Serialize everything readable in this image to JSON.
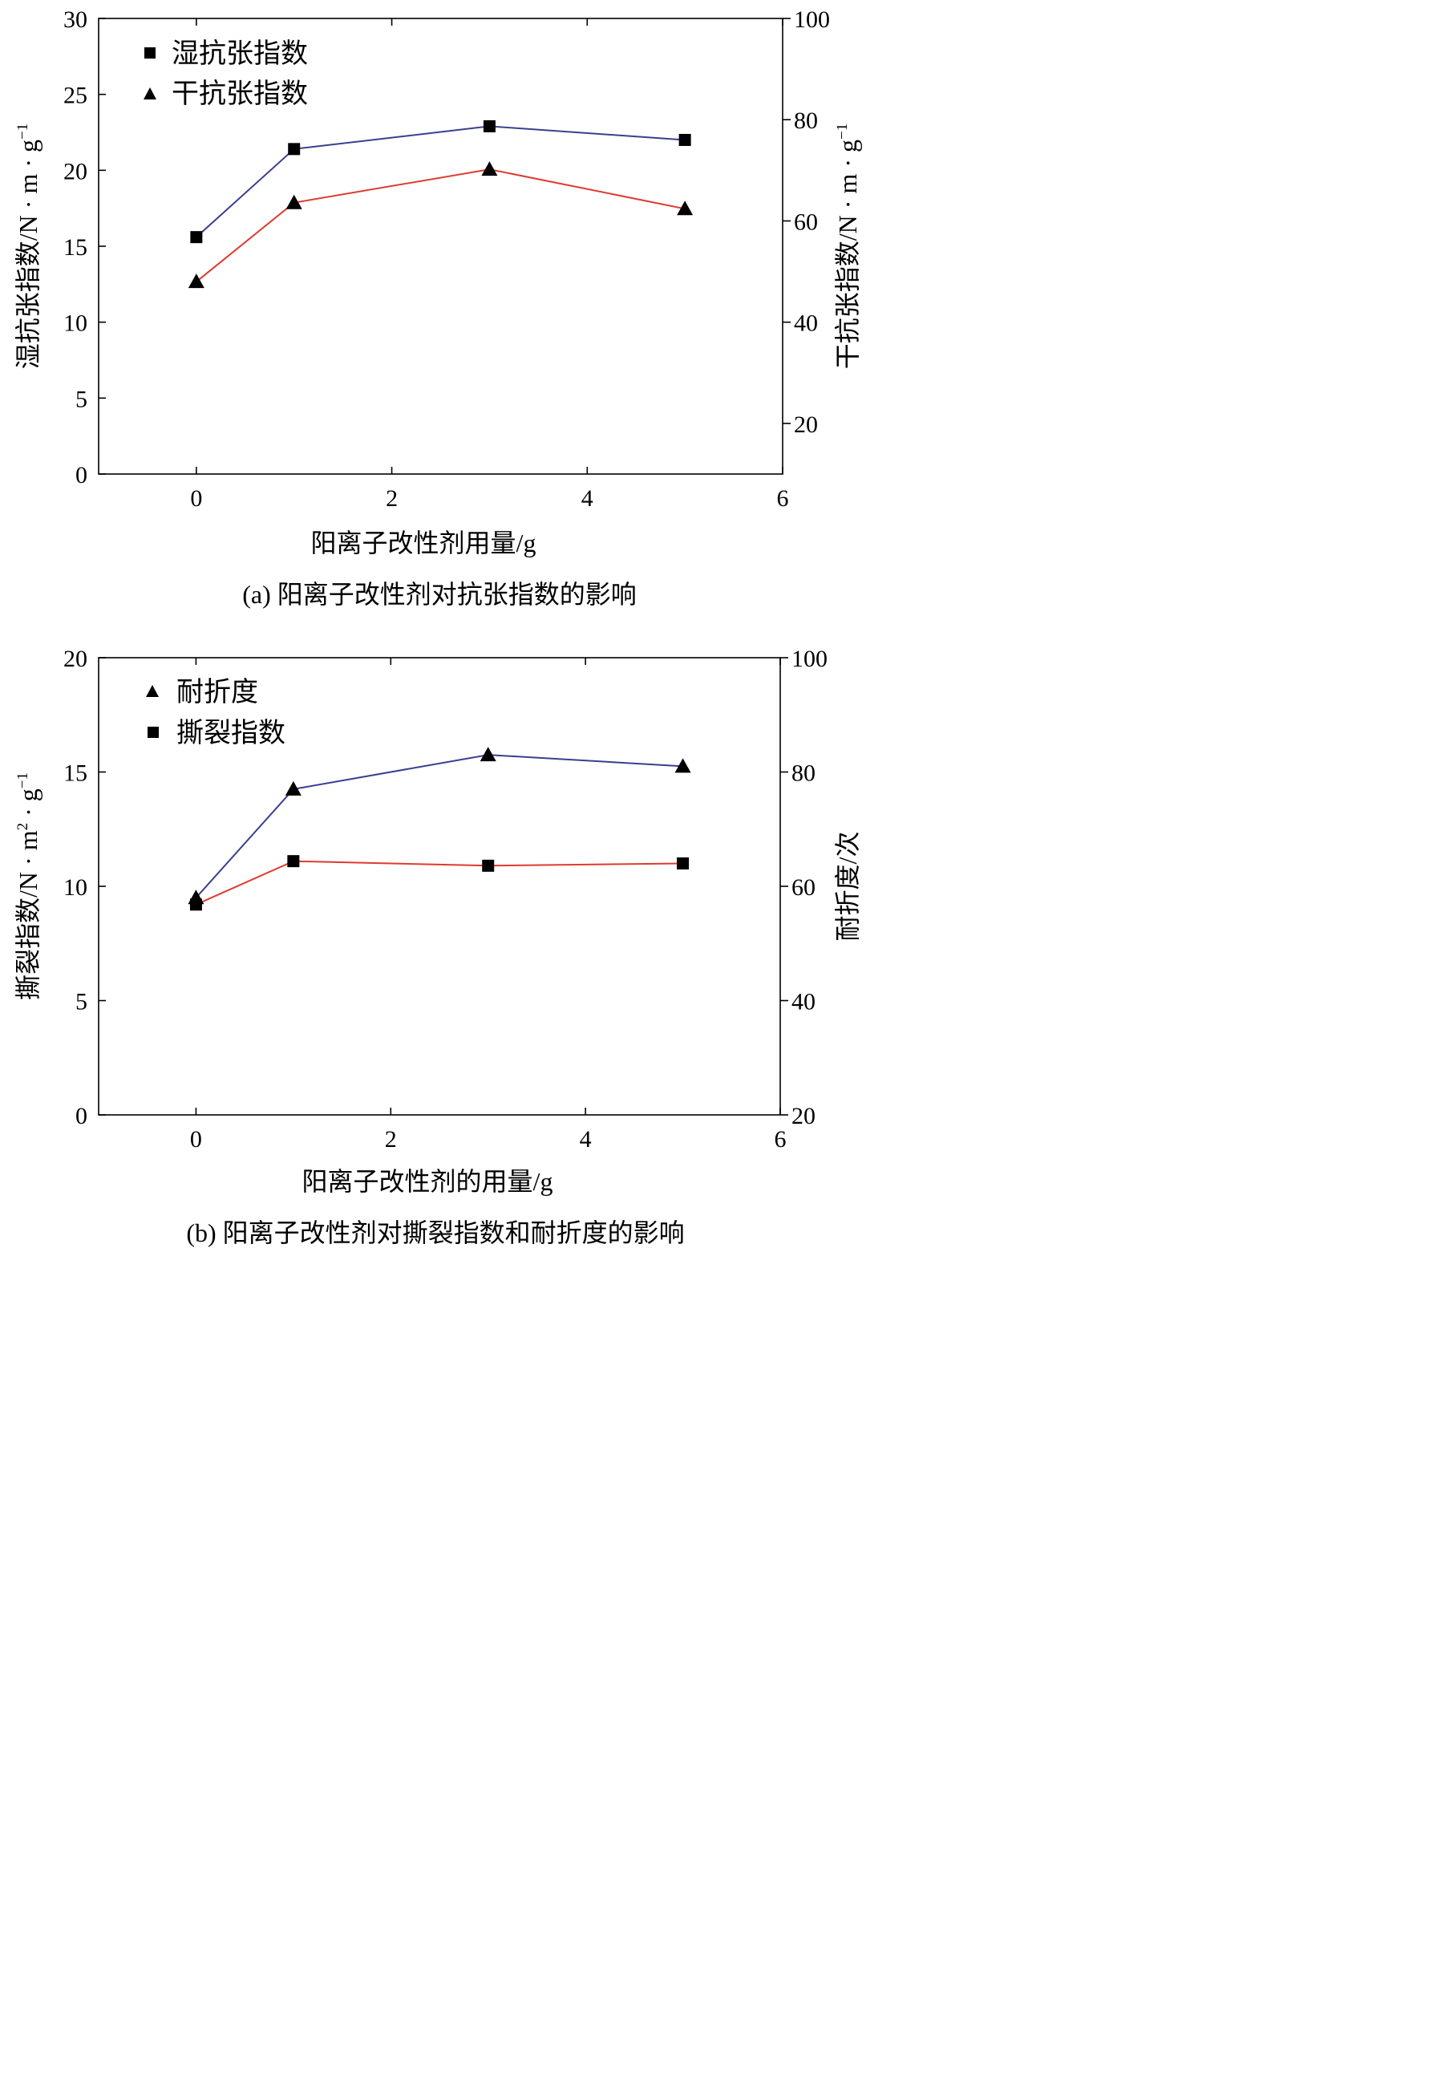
{
  "chart_data": [
    {
      "type": "line",
      "caption": "(a) 阳离子改性剂对抗张指数的影响",
      "xlabel": "阳离子改性剂用量/g",
      "ylabel_left": "湿抗张指数/N · m · g",
      "ylabel_left_sup": "−1",
      "ylabel_right": "干抗张指数/N · m · g",
      "ylabel_right_sup": "−1",
      "xlim": [
        -1,
        6
      ],
      "ylim_left": [
        0,
        30
      ],
      "ylim_right": [
        10,
        100
      ],
      "x_ticks": [
        "0",
        "2",
        "4",
        "6"
      ],
      "y_ticks_left": [
        "0",
        "5",
        "10",
        "15",
        "20",
        "25",
        "30"
      ],
      "y_ticks_right": [
        "20",
        "40",
        "60",
        "80",
        "100"
      ],
      "legend_position": "top-left",
      "series": [
        {
          "name": "湿抗张指数",
          "marker": "square",
          "axis": "left",
          "line_color": "#3a3f8f",
          "x": [
            0,
            1,
            3,
            5
          ],
          "values": [
            15.6,
            21.4,
            22.9,
            22.0
          ]
        },
        {
          "name": "干抗张指数",
          "marker": "triangle",
          "axis": "right",
          "line_color": "#e03a2e",
          "x": [
            0,
            1,
            3,
            5
          ],
          "values": [
            48,
            63.6,
            70.2,
            62.4
          ]
        }
      ]
    },
    {
      "type": "line",
      "caption": "(b) 阳离子改性剂对撕裂指数和耐折度的影响",
      "xlabel": "阳离子改性剂的用量/g",
      "ylabel_left": "撕裂指数/N · m",
      "ylabel_left_sup1": "2",
      "ylabel_left_mid": " · g",
      "ylabel_left_sup2": "−1",
      "ylabel_right": "耐折度/次",
      "xlim": [
        -1,
        6
      ],
      "ylim_left": [
        0,
        20
      ],
      "ylim_right": [
        20,
        100
      ],
      "x_ticks": [
        "0",
        "2",
        "4",
        "6"
      ],
      "y_ticks_left": [
        "0",
        "5",
        "10",
        "15",
        "20"
      ],
      "y_ticks_right": [
        "20",
        "40",
        "60",
        "80",
        "100"
      ],
      "legend_position": "top-left",
      "series": [
        {
          "name": "耐折度",
          "marker": "triangle",
          "axis": "right",
          "line_color": "#3a3f8f",
          "x": [
            0,
            1,
            3,
            5
          ],
          "values": [
            58,
            77,
            83,
            81
          ]
        },
        {
          "name": "撕裂指数",
          "marker": "square",
          "axis": "left",
          "line_color": "#e03a2e",
          "x": [
            0,
            1,
            3,
            5
          ],
          "values": [
            9.2,
            11.1,
            10.9,
            11.0
          ]
        }
      ]
    }
  ]
}
